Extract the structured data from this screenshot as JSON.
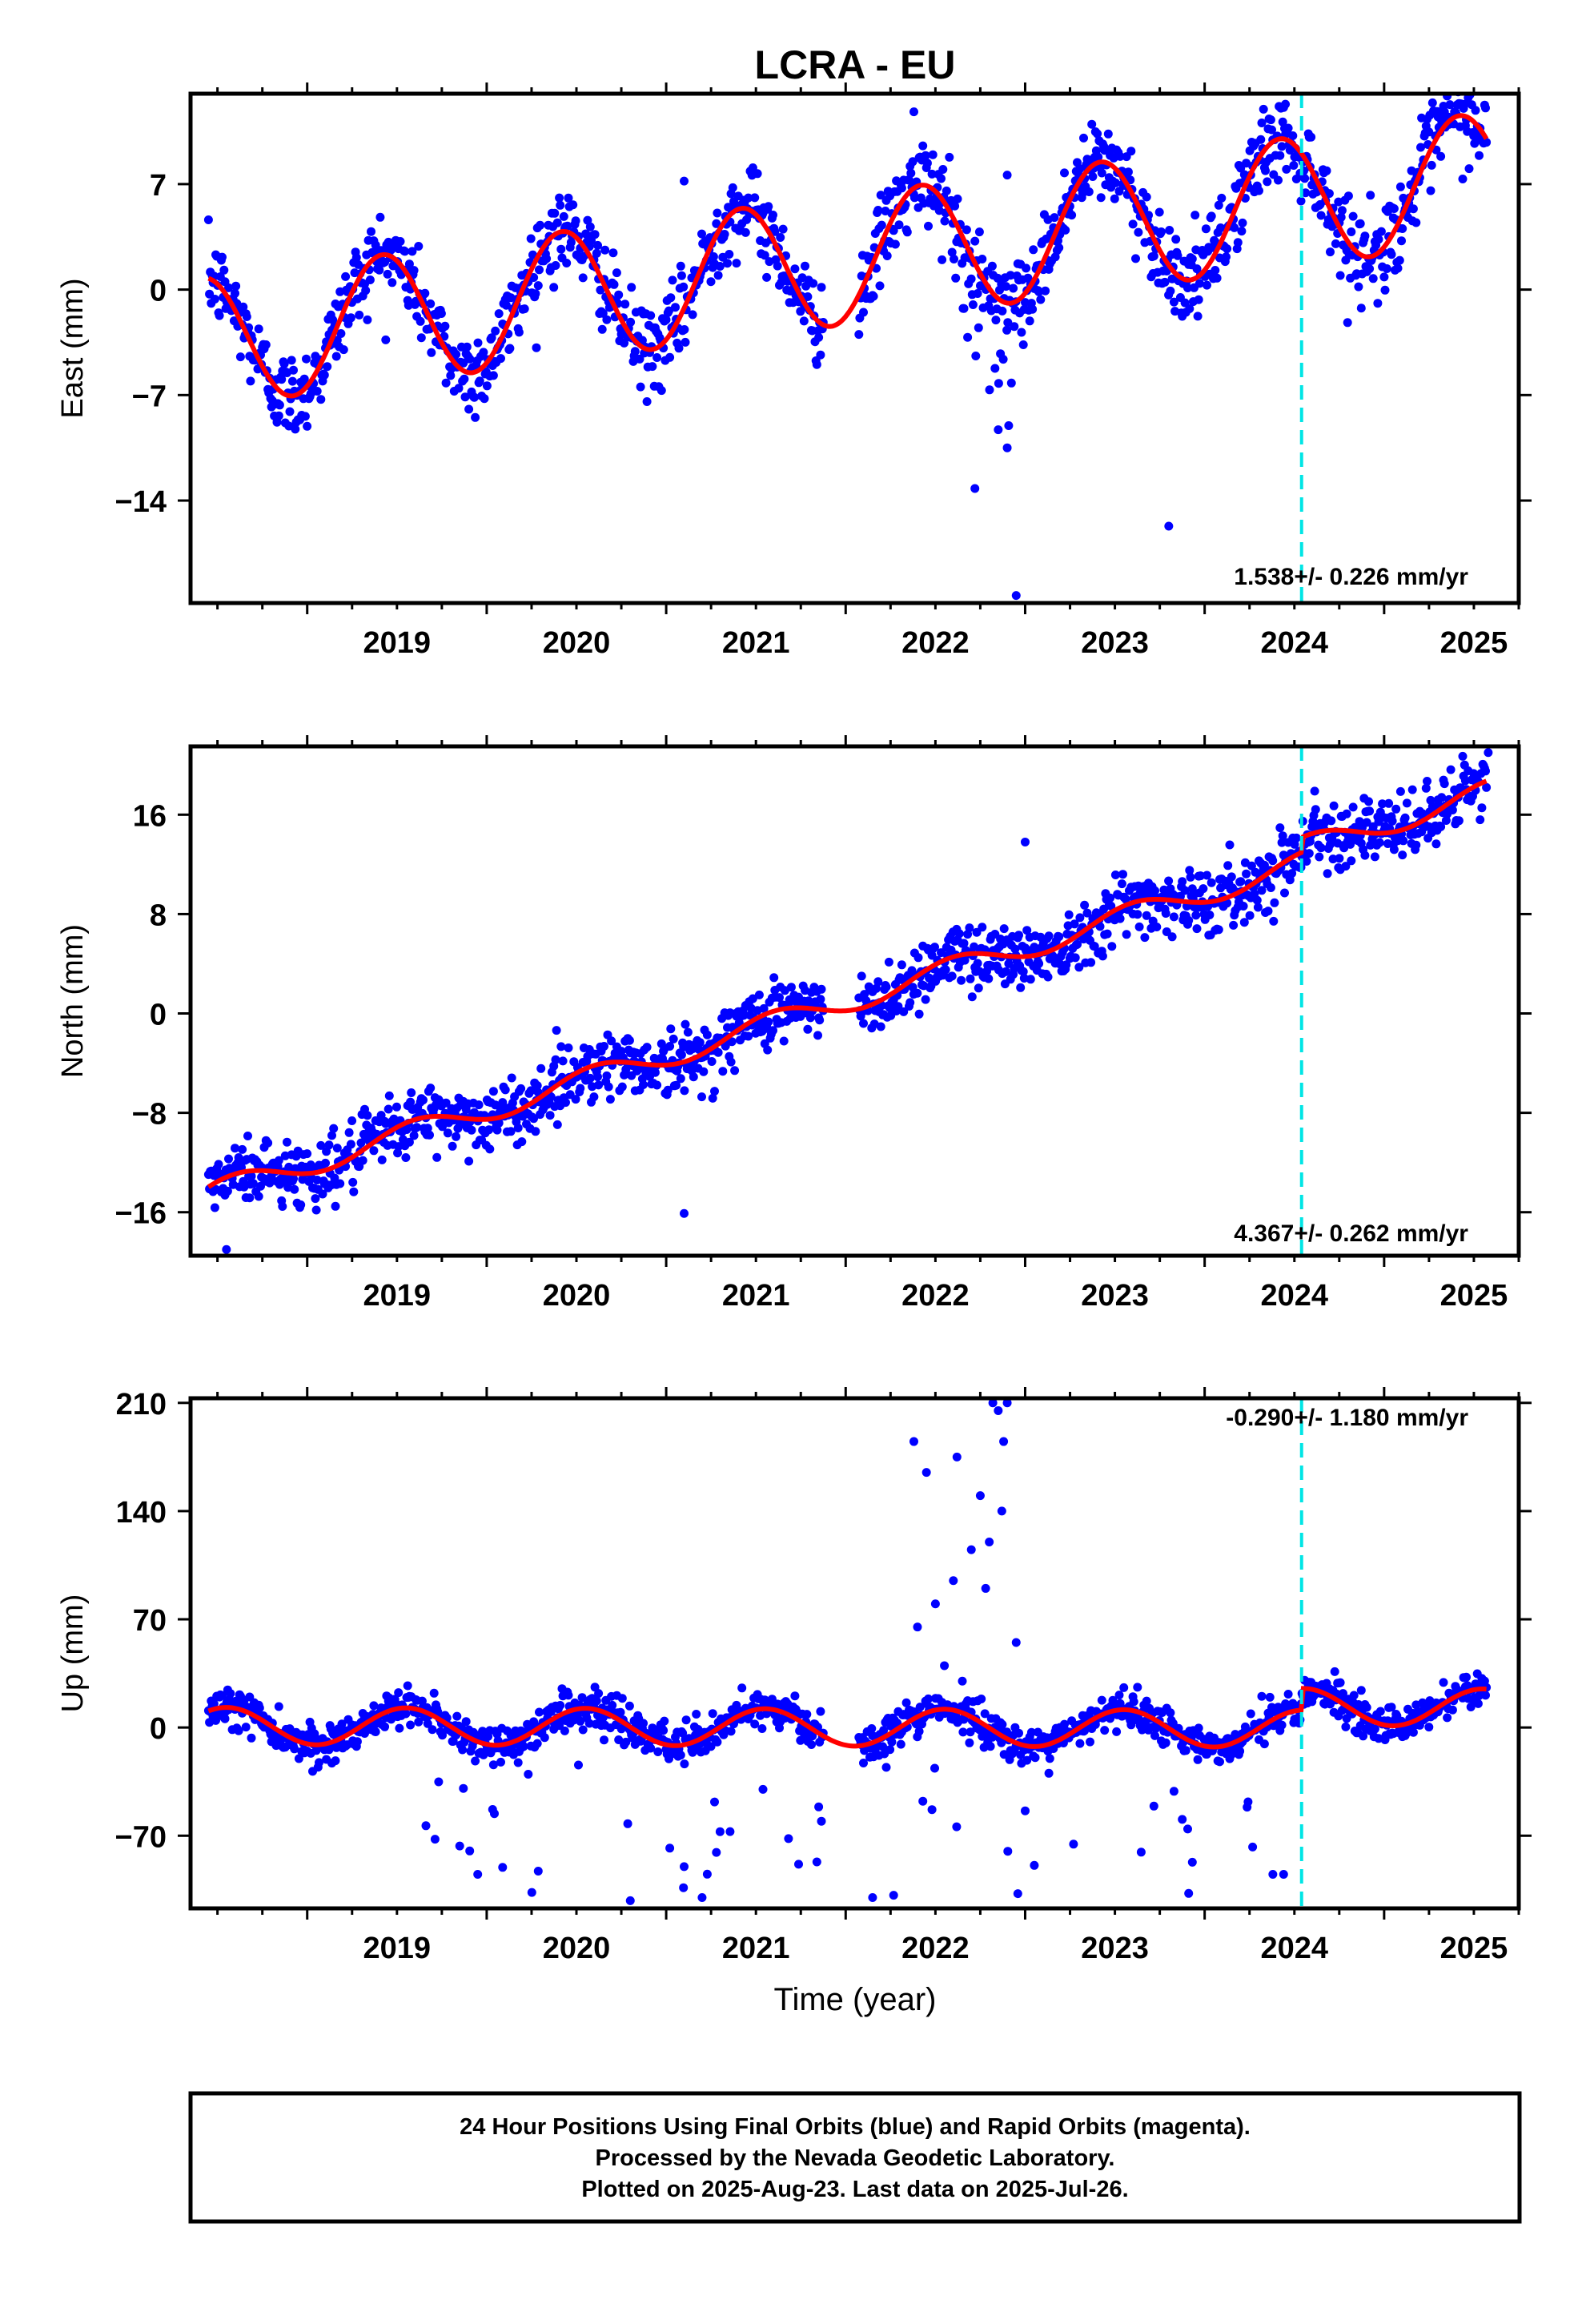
{
  "title": "LCRA - EU",
  "x_axis_label": "Time (year)",
  "footer": {
    "line1": "24 Hour Positions Using Final Orbits (blue) and Rapid Orbits (magenta).",
    "line2": "Processed by the Nevada Geodetic Laboratory.",
    "line3": "Plotted on 2025-Aug-23. Last data on 2025-Jul-26."
  },
  "colors": {
    "points": "#0000ff",
    "fit": "#ff0000",
    "event_line": "#00e5e5",
    "frame": "#000000"
  },
  "chart_data": [
    {
      "type": "scatter",
      "component": "east",
      "ylabel": "East (mm)",
      "xlim": [
        2018.35,
        2025.75
      ],
      "ylim": [
        -20.8,
        13
      ],
      "yticks": [
        "7",
        "0",
        "-7",
        "-14"
      ],
      "xticks": [
        "2019",
        "2020",
        "2021",
        "2022",
        "2023",
        "2024",
        "2025"
      ],
      "rate_text": "1.538+/- 0.226 mm/yr",
      "event_line_x": 2024.54,
      "fit_model": {
        "offset": -3.4,
        "trend": 1.538,
        "t0": 2018.5,
        "amp_annual": 4.3,
        "peak_phase": 0.42,
        "step_at_event": 0
      },
      "data_range": [
        2018.45,
        2025.57
      ],
      "scatter_sigma": 1.4,
      "outliers": [
        {
          "x": 2022.38,
          "y": 11.8
        },
        {
          "x": 2022.72,
          "y": -13.2
        },
        {
          "x": 2022.95,
          "y": -20.3
        },
        {
          "x": 2023.8,
          "y": -15.7
        },
        {
          "x": 2024.45,
          "y": 12.3
        },
        {
          "x": 2022.9,
          "y": 7.6
        },
        {
          "x": 2021.1,
          "y": 7.2
        },
        {
          "x": 2022.9,
          "y": -10.5
        },
        {
          "x": 2022.85,
          "y": -9.3
        }
      ]
    },
    {
      "type": "scatter",
      "component": "north",
      "ylabel": "North (mm)",
      "xlim": [
        2018.35,
        2025.75
      ],
      "ylim": [
        -19.5,
        21.5
      ],
      "yticks": [
        "16",
        "8",
        "0",
        "-8",
        "-16"
      ],
      "xticks": [
        "2019",
        "2020",
        "2021",
        "2022",
        "2023",
        "2024",
        "2025"
      ],
      "rate_text": "4.367+/- 0.262 mm/yr",
      "event_line_x": 2024.54,
      "fit_model": {
        "offset": -14.3,
        "trend": 4.367,
        "t0": 2018.5,
        "amp_annual": 0.95,
        "peak_phase": 0.6,
        "step_at_event": 1.2
      },
      "data_range": [
        2018.45,
        2025.57
      ],
      "scatter_sigma": 1.3,
      "outliers": [
        {
          "x": 2021.1,
          "y": -16.1
        },
        {
          "x": 2023.0,
          "y": 13.8
        },
        {
          "x": 2025.58,
          "y": 21.0
        },
        {
          "x": 2018.55,
          "y": -19
        }
      ]
    },
    {
      "type": "scatter",
      "component": "up",
      "ylabel": "Up (mm)",
      "xlim": [
        2018.35,
        2025.75
      ],
      "ylim": [
        -117,
        213
      ],
      "yticks": [
        "210",
        "140",
        "70",
        "0",
        "-70"
      ],
      "xticks": [
        "2019",
        "2020",
        "2021",
        "2022",
        "2023",
        "2024",
        "2025"
      ],
      "rate_text": "-0.290+/- 1.180 mm/yr",
      "event_line_x": 2024.54,
      "fit_model": {
        "offset": 1.0,
        "trend": -0.29,
        "t0": 2018.5,
        "amp_annual": 12.0,
        "peak_phase": 0.55,
        "step_at_event": 14
      },
      "data_range": [
        2018.45,
        2025.57
      ],
      "scatter_sigma": 6.0,
      "outliers": [
        {
          "x": 2022.38,
          "y": 185
        },
        {
          "x": 2022.45,
          "y": 165
        },
        {
          "x": 2022.62,
          "y": 175
        },
        {
          "x": 2022.75,
          "y": 150
        },
        {
          "x": 2022.82,
          "y": 210
        },
        {
          "x": 2022.9,
          "y": 210
        },
        {
          "x": 2022.85,
          "y": 205
        },
        {
          "x": 2022.88,
          "y": 185
        },
        {
          "x": 2022.7,
          "y": 115
        },
        {
          "x": 2022.6,
          "y": 95
        },
        {
          "x": 2022.8,
          "y": 120
        },
        {
          "x": 2022.5,
          "y": 80
        },
        {
          "x": 2022.95,
          "y": 55
        },
        {
          "x": 2022.4,
          "y": 65
        },
        {
          "x": 2022.65,
          "y": 30
        },
        {
          "x": 2022.55,
          "y": 40
        },
        {
          "x": 2022.78,
          "y": 90
        },
        {
          "x": 2022.87,
          "y": 140
        },
        {
          "x": 2024.38,
          "y": -95
        },
        {
          "x": 2019.95,
          "y": -95
        },
        {
          "x": 2020.8,
          "y": -112
        },
        {
          "x": 2021.2,
          "y": -110
        },
        {
          "x": 2022.15,
          "y": -110
        },
        {
          "x": 2021.1,
          "y": -90
        }
      ]
    }
  ]
}
